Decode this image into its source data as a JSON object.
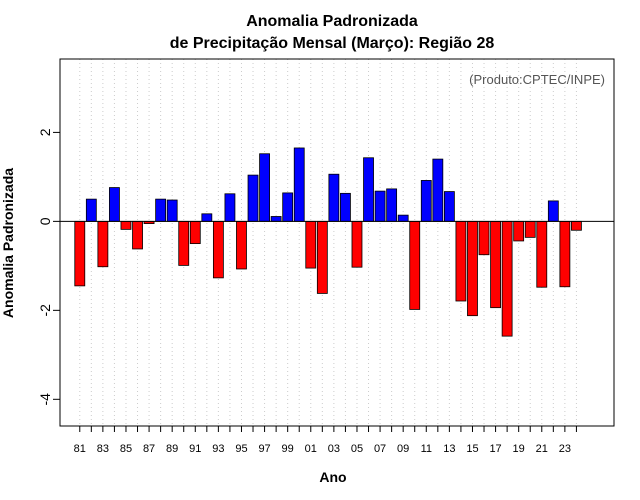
{
  "chart_data": {
    "type": "bar",
    "title": "Anomalia Padronizada",
    "subtitle": "de Precipitação Mensal (Março): Região 28",
    "xlabel": "Ano",
    "ylabel": "Anomalia Padronizada",
    "annotation": "(Produto:CPTEC/INPE)",
    "ylim": [
      -4.6,
      3.65
    ],
    "yticks": [
      -4,
      -2,
      0,
      2
    ],
    "grid": "vertical dotted",
    "positive_color": "#0000ff",
    "negative_color": "#ff0000",
    "categories": [
      "1981",
      "1982",
      "1983",
      "1984",
      "1985",
      "1986",
      "1987",
      "1988",
      "1989",
      "1990",
      "1991",
      "1992",
      "1993",
      "1994",
      "1995",
      "1996",
      "1997",
      "1998",
      "1999",
      "2000",
      "2001",
      "2002",
      "2003",
      "2004",
      "2005",
      "2006",
      "2007",
      "2008",
      "2009",
      "2010",
      "2011",
      "2012",
      "2013",
      "2014",
      "2015",
      "2016",
      "2017",
      "2018",
      "2019",
      "2020",
      "2021",
      "2022",
      "2023",
      "2024"
    ],
    "values": [
      -1.45,
      0.5,
      -1.02,
      0.76,
      -0.18,
      -0.62,
      -0.05,
      0.5,
      0.48,
      -0.99,
      -0.5,
      0.17,
      -1.27,
      0.62,
      -1.07,
      1.04,
      1.52,
      0.11,
      0.64,
      1.65,
      -1.05,
      -1.62,
      1.06,
      0.63,
      -1.03,
      1.43,
      0.68,
      0.73,
      0.14,
      -1.98,
      0.92,
      1.4,
      0.67,
      -1.79,
      -2.12,
      -0.75,
      -1.94,
      -2.58,
      -0.44,
      -0.36,
      -1.48,
      0.46,
      -1.47,
      -0.2
    ],
    "xtick_labels": [
      "81",
      "83",
      "85",
      "87",
      "89",
      "91",
      "93",
      "95",
      "97",
      "99",
      "01",
      "03",
      "05",
      "07",
      "09",
      "11",
      "13",
      "15",
      "17",
      "19",
      "21",
      "23"
    ]
  }
}
